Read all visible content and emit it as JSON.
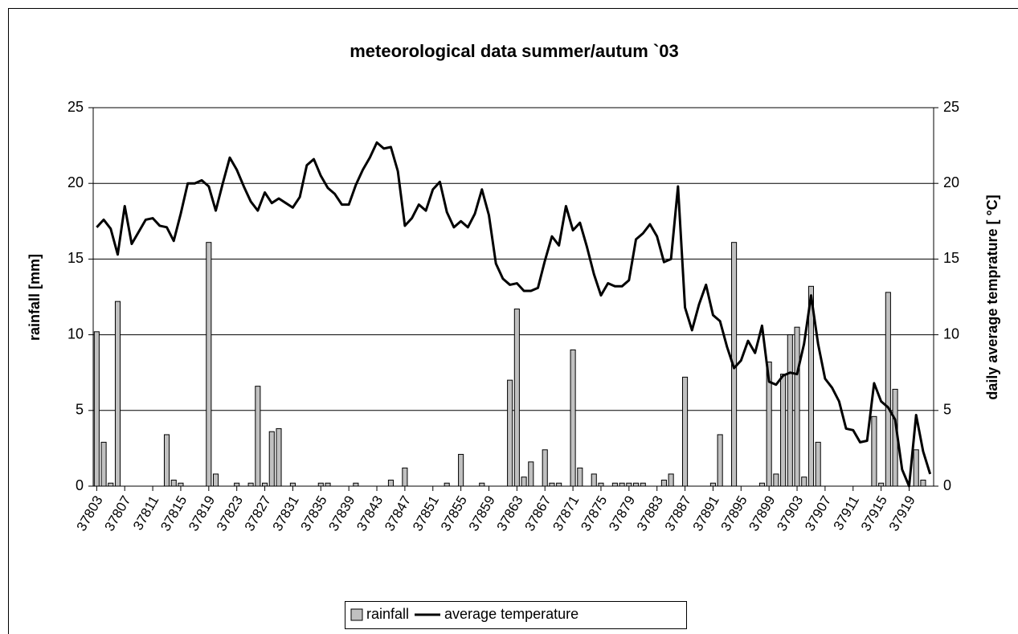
{
  "chart_data": {
    "type": "bar_line",
    "title": "meteorological data summer/autum `03",
    "y_label": "rainfall [mm]",
    "y2_label": "daily average temprature [ °C]",
    "x": [
      37803,
      37804,
      37805,
      37806,
      37807,
      37808,
      37809,
      37810,
      37811,
      37812,
      37813,
      37814,
      37815,
      37816,
      37817,
      37818,
      37819,
      37820,
      37821,
      37822,
      37823,
      37824,
      37825,
      37826,
      37827,
      37828,
      37829,
      37830,
      37831,
      37832,
      37833,
      37834,
      37835,
      37836,
      37837,
      37838,
      37839,
      37840,
      37841,
      37842,
      37843,
      37844,
      37845,
      37846,
      37847,
      37848,
      37849,
      37850,
      37851,
      37852,
      37853,
      37854,
      37855,
      37856,
      37857,
      37858,
      37859,
      37860,
      37861,
      37862,
      37863,
      37864,
      37865,
      37866,
      37867,
      37868,
      37869,
      37870,
      37871,
      37872,
      37873,
      37874,
      37875,
      37876,
      37877,
      37878,
      37879,
      37880,
      37881,
      37882,
      37883,
      37884,
      37885,
      37886,
      37887,
      37888,
      37889,
      37890,
      37891,
      37892,
      37893,
      37894,
      37895,
      37896,
      37897,
      37898,
      37899,
      37900,
      37901,
      37902,
      37903,
      37904,
      37905,
      37906,
      37907,
      37908,
      37909,
      37910,
      37911,
      37912,
      37913,
      37914,
      37915,
      37916,
      37917,
      37918,
      37919,
      37920,
      37921,
      37922
    ],
    "xlim": [
      37802.5,
      37922.5
    ],
    "xticks": [
      37803,
      37807,
      37811,
      37815,
      37819,
      37823,
      37827,
      37831,
      37835,
      37839,
      37843,
      37847,
      37851,
      37855,
      37859,
      37863,
      37867,
      37871,
      37875,
      37879,
      37883,
      37887,
      37891,
      37895,
      37899,
      37903,
      37907,
      37911,
      37915,
      37919
    ],
    "ylim": [
      0,
      25
    ],
    "yticks": [
      0,
      5,
      10,
      15,
      20,
      25
    ],
    "y2lim": [
      0,
      25
    ],
    "y2ticks": [
      0,
      5,
      10,
      15,
      20,
      25
    ],
    "grid": true,
    "legend_position": "bottom",
    "series": [
      {
        "name": "rainfall",
        "kind": "bar",
        "color": "#c0c0c0",
        "values": [
          10.2,
          2.9,
          0.2,
          12.2,
          0,
          0,
          0,
          0,
          0,
          0,
          3.4,
          0.4,
          0.2,
          0,
          0,
          0,
          16.1,
          0.8,
          0,
          0,
          0.2,
          0,
          0.2,
          6.6,
          0.2,
          3.6,
          3.8,
          0,
          0.2,
          0,
          0,
          0,
          0.2,
          0.2,
          0,
          0,
          0,
          0.2,
          0,
          0,
          0,
          0,
          0.4,
          0,
          1.2,
          0,
          0,
          0,
          0,
          0,
          0.2,
          0,
          2.1,
          0,
          0,
          0.2,
          0,
          0,
          0,
          7.0,
          11.7,
          0.6,
          1.6,
          0,
          2.4,
          0.2,
          0.2,
          0,
          9.0,
          1.2,
          0,
          0.8,
          0.2,
          0,
          0.2,
          0.2,
          0.2,
          0.2,
          0.2,
          0,
          0,
          0.4,
          0.8,
          0,
          7.2,
          0,
          0,
          0,
          0.2,
          3.4,
          0,
          16.1,
          0,
          0,
          0,
          0.2,
          8.2,
          0.8,
          7.4,
          10.0,
          10.5,
          0.6,
          13.2,
          2.9,
          0,
          0,
          0,
          0,
          0,
          0,
          0,
          4.6,
          0.2,
          12.8,
          6.4,
          0,
          0,
          2.4,
          0.4,
          0
        ]
      },
      {
        "name": "average temperature",
        "kind": "line",
        "axis": "y2",
        "color": "#000000",
        "values": [
          17.1,
          17.6,
          17.0,
          15.3,
          18.5,
          16.0,
          16.8,
          17.6,
          17.7,
          17.2,
          17.1,
          16.2,
          18.0,
          20.0,
          20.0,
          20.2,
          19.8,
          18.2,
          20.0,
          21.7,
          20.9,
          19.8,
          18.8,
          18.2,
          19.4,
          18.7,
          19.0,
          18.7,
          18.4,
          19.1,
          21.2,
          21.6,
          20.5,
          19.7,
          19.3,
          18.6,
          18.6,
          19.9,
          20.9,
          21.7,
          22.7,
          22.3,
          22.4,
          20.8,
          17.2,
          17.7,
          18.6,
          18.2,
          19.6,
          20.1,
          18.1,
          17.1,
          17.5,
          17.1,
          18.0,
          19.6,
          17.9,
          14.7,
          13.7,
          13.3,
          13.4,
          12.9,
          12.9,
          13.1,
          14.9,
          16.5,
          15.9,
          18.5,
          16.9,
          17.4,
          15.8,
          14.0,
          12.6,
          13.4,
          13.2,
          13.2,
          13.6,
          16.3,
          16.7,
          17.3,
          16.5,
          14.8,
          15.0,
          19.8,
          11.8,
          10.3,
          12.0,
          13.3,
          11.3,
          10.9,
          9.2,
          7.8,
          8.3,
          9.6,
          8.8,
          10.6,
          6.9,
          6.7,
          7.3,
          7.5,
          7.4,
          9.4,
          12.6,
          9.4,
          7.1,
          6.5,
          5.6,
          3.8,
          3.7,
          2.9,
          3.0,
          6.8,
          5.6,
          5.2,
          4.4,
          1.1,
          0.0,
          4.7,
          2.3,
          0.8
        ]
      }
    ]
  }
}
